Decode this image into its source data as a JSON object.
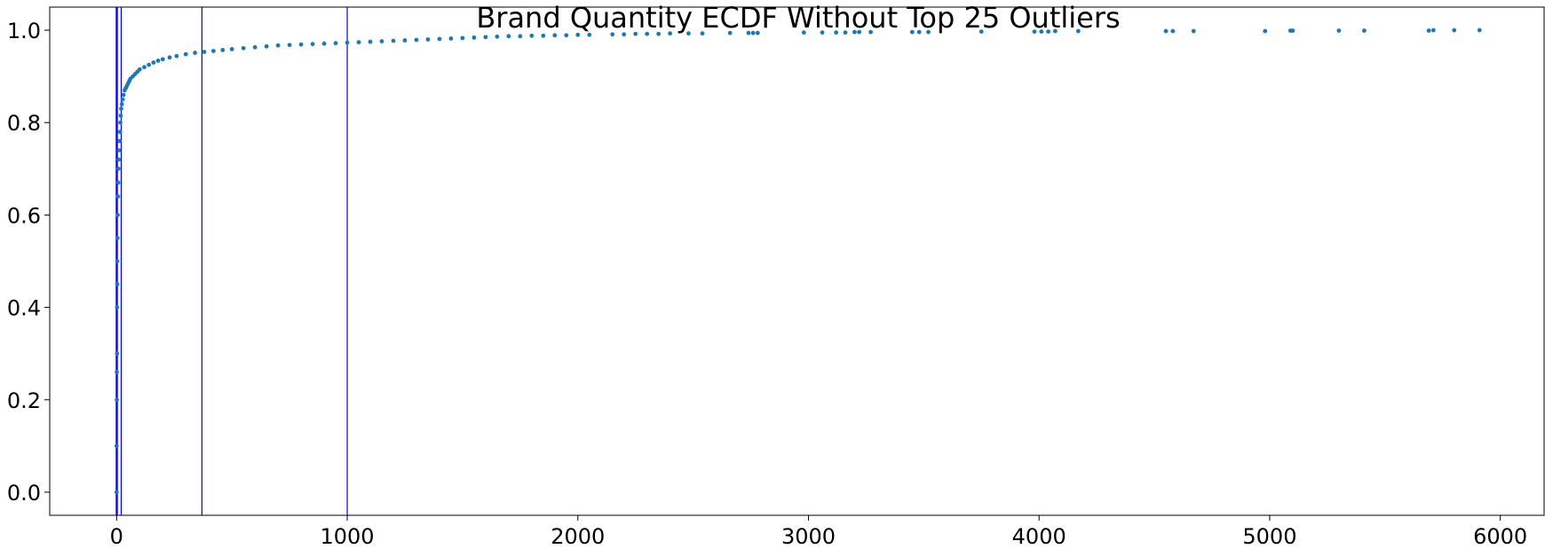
{
  "chart_data": {
    "type": "scatter",
    "title": "Brand Quantity ECDF Without Top 25 Outliers",
    "xlabel": "",
    "ylabel": "",
    "xlim": [
      -290,
      6190
    ],
    "ylim": [
      -0.05,
      1.05
    ],
    "x_ticks": [
      0,
      1000,
      2000,
      3000,
      4000,
      5000,
      6000
    ],
    "x_tick_labels": [
      "0",
      "1000",
      "2000",
      "3000",
      "4000",
      "5000",
      "6000"
    ],
    "y_ticks": [
      0.0,
      0.2,
      0.4,
      0.6,
      0.8,
      1.0
    ],
    "y_tick_labels": [
      "0.0",
      "0.2",
      "0.4",
      "0.6",
      "0.8",
      "1.0"
    ],
    "grid": false,
    "marker_color": "#1f77b4",
    "line_color": "#0000ff",
    "vlines": [
      0,
      3,
      20,
      370,
      1000
    ],
    "series": [
      {
        "x": [
          0,
          0,
          1,
          1,
          2,
          2,
          3,
          3,
          4,
          5,
          6,
          7,
          8,
          9,
          10,
          12,
          14,
          16,
          18,
          20,
          23,
          26,
          30,
          35,
          40,
          45,
          50,
          55,
          60,
          70,
          80,
          90,
          100,
          120,
          140,
          160,
          180,
          200,
          230,
          260,
          300,
          340,
          380,
          420,
          460,
          500,
          550,
          600,
          650,
          700,
          750,
          800,
          850,
          900,
          950,
          1000,
          1050,
          1100,
          1150,
          1200,
          1250,
          1300,
          1350,
          1400,
          1450,
          1500,
          1550,
          1600,
          1650,
          1700,
          1750,
          1800,
          1850,
          1900,
          1950,
          2000,
          2050,
          2150,
          2200,
          2250,
          2300,
          2350,
          2400,
          2480,
          2540,
          2660,
          2740,
          2760,
          2780,
          2980,
          3060,
          3120,
          3160,
          3200,
          3220,
          3270,
          3450,
          3480,
          3520,
          3750,
          3980,
          4010,
          4040,
          4070,
          4170,
          4550,
          4580,
          4670,
          4980,
          5090,
          5100,
          5300,
          5410,
          5690,
          5710,
          5800,
          5910
        ],
        "y": [
          0.0,
          0.1,
          0.2,
          0.26,
          0.3,
          0.4,
          0.45,
          0.5,
          0.55,
          0.6,
          0.64,
          0.67,
          0.7,
          0.72,
          0.74,
          0.76,
          0.78,
          0.8,
          0.815,
          0.83,
          0.84,
          0.85,
          0.86,
          0.87,
          0.875,
          0.88,
          0.885,
          0.89,
          0.895,
          0.9,
          0.905,
          0.91,
          0.915,
          0.92,
          0.925,
          0.93,
          0.934,
          0.937,
          0.941,
          0.944,
          0.948,
          0.951,
          0.953,
          0.955,
          0.957,
          0.959,
          0.961,
          0.963,
          0.965,
          0.967,
          0.968,
          0.969,
          0.97,
          0.971,
          0.972,
          0.973,
          0.974,
          0.975,
          0.976,
          0.977,
          0.978,
          0.979,
          0.98,
          0.981,
          0.982,
          0.983,
          0.984,
          0.985,
          0.986,
          0.987,
          0.987,
          0.988,
          0.988,
          0.989,
          0.989,
          0.99,
          0.99,
          0.991,
          0.991,
          0.992,
          0.992,
          0.992,
          0.993,
          0.993,
          0.993,
          0.994,
          0.994,
          0.994,
          0.994,
          0.995,
          0.995,
          0.995,
          0.995,
          0.996,
          0.996,
          0.996,
          0.996,
          0.996,
          0.996,
          0.997,
          0.997,
          0.997,
          0.997,
          0.998,
          0.998,
          0.998,
          0.998,
          0.998,
          0.998,
          0.999,
          0.999,
          0.999,
          0.999,
          0.999,
          1.0,
          1.0,
          1.0
        ]
      }
    ]
  }
}
